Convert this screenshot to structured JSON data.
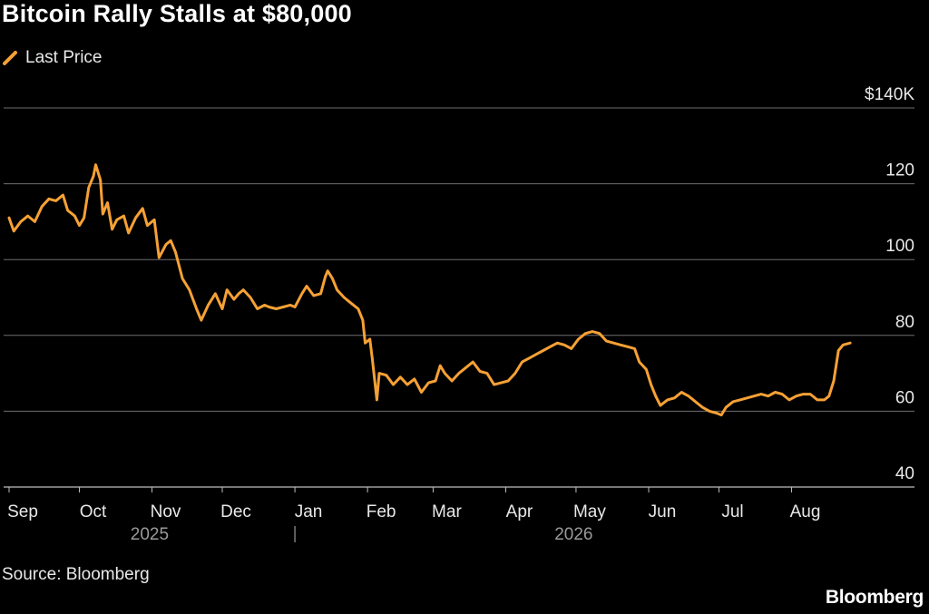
{
  "title": "Bitcoin Rally Stalls at $80,000",
  "legend": [
    {
      "label": "Last Price",
      "color": "#F6A134"
    }
  ],
  "source": "Source: Bloomberg",
  "brand": "Bloomberg",
  "chart_data": {
    "type": "line",
    "title": "Bitcoin Rally Stalls at $80,000",
    "ylim": [
      40,
      140
    ],
    "ylabel": "",
    "xlabel": "",
    "grid": true,
    "legend_position": "top-left",
    "y_ticks": [
      {
        "value": 140,
        "label": "$140K"
      },
      {
        "value": 120,
        "label": "120"
      },
      {
        "value": 100,
        "label": "100"
      },
      {
        "value": 80,
        "label": "80"
      },
      {
        "value": 60,
        "label": "60"
      },
      {
        "value": 40,
        "label": "40"
      }
    ],
    "x_ticks": [
      {
        "date": "2025-09-01",
        "label": "Sep"
      },
      {
        "date": "2025-10-01",
        "label": "Oct"
      },
      {
        "date": "2025-11-01",
        "label": "Nov"
      },
      {
        "date": "2025-12-01",
        "label": "Dec"
      },
      {
        "date": "2026-01-01",
        "label": "Jan"
      },
      {
        "date": "2026-02-01",
        "label": "Feb"
      },
      {
        "date": "2026-03-01",
        "label": "Mar"
      },
      {
        "date": "2026-04-01",
        "label": "Apr"
      },
      {
        "date": "2026-05-01",
        "label": "May"
      },
      {
        "date": "2026-06-01",
        "label": "Jun"
      },
      {
        "date": "2026-07-01",
        "label": "Jul"
      },
      {
        "date": "2026-08-01",
        "label": "Aug"
      }
    ],
    "year_labels": [
      {
        "label": "2025",
        "at": "2025-10-31"
      },
      {
        "label": "2026",
        "at": "2026-04-30"
      }
    ],
    "year_separator": "2026-01-01",
    "series": [
      {
        "name": "Last Price",
        "color": "#F6A134",
        "points": [
          [
            "2025-09-01",
            111
          ],
          [
            "2025-09-03",
            107.5
          ],
          [
            "2025-09-06",
            110
          ],
          [
            "2025-09-09",
            111.5
          ],
          [
            "2025-09-12",
            110
          ],
          [
            "2025-09-15",
            114
          ],
          [
            "2025-09-18",
            116
          ],
          [
            "2025-09-21",
            115.5
          ],
          [
            "2025-09-24",
            117
          ],
          [
            "2025-09-26",
            113
          ],
          [
            "2025-09-29",
            111.5
          ],
          [
            "2025-10-01",
            109
          ],
          [
            "2025-10-03",
            111
          ],
          [
            "2025-10-05",
            119
          ],
          [
            "2025-10-07",
            122
          ],
          [
            "2025-10-08",
            125
          ],
          [
            "2025-10-10",
            121
          ],
          [
            "2025-10-11",
            112
          ],
          [
            "2025-10-13",
            115
          ],
          [
            "2025-10-15",
            108
          ],
          [
            "2025-10-17",
            110.5
          ],
          [
            "2025-10-20",
            111.5
          ],
          [
            "2025-10-22",
            107
          ],
          [
            "2025-10-25",
            111
          ],
          [
            "2025-10-28",
            113.5
          ],
          [
            "2025-10-30",
            109
          ],
          [
            "2025-11-02",
            110.5
          ],
          [
            "2025-11-04",
            100.5
          ],
          [
            "2025-11-07",
            104
          ],
          [
            "2025-11-09",
            105
          ],
          [
            "2025-11-11",
            102
          ],
          [
            "2025-11-14",
            95
          ],
          [
            "2025-11-17",
            92
          ],
          [
            "2025-11-20",
            87
          ],
          [
            "2025-11-22",
            84
          ],
          [
            "2025-11-25",
            88
          ],
          [
            "2025-11-28",
            91
          ],
          [
            "2025-12-01",
            87
          ],
          [
            "2025-12-03",
            92
          ],
          [
            "2025-12-06",
            89.5
          ],
          [
            "2025-12-08",
            91
          ],
          [
            "2025-12-10",
            92
          ],
          [
            "2025-12-13",
            90
          ],
          [
            "2025-12-16",
            87
          ],
          [
            "2025-12-19",
            88
          ],
          [
            "2025-12-21",
            87.5
          ],
          [
            "2025-12-24",
            87
          ],
          [
            "2025-12-27",
            87.5
          ],
          [
            "2025-12-30",
            88
          ],
          [
            "2026-01-01",
            87.5
          ],
          [
            "2026-01-04",
            91
          ],
          [
            "2026-01-06",
            93
          ],
          [
            "2026-01-09",
            90.5
          ],
          [
            "2026-01-12",
            91
          ],
          [
            "2026-01-14",
            95.5
          ],
          [
            "2026-01-15",
            97
          ],
          [
            "2026-01-17",
            95
          ],
          [
            "2026-01-19",
            92
          ],
          [
            "2026-01-22",
            90
          ],
          [
            "2026-01-25",
            88.5
          ],
          [
            "2026-01-28",
            87
          ],
          [
            "2026-01-30",
            84
          ],
          [
            "2026-01-31",
            78
          ],
          [
            "2026-02-02",
            79
          ],
          [
            "2026-02-03",
            74
          ],
          [
            "2026-02-05",
            63
          ],
          [
            "2026-02-06",
            70
          ],
          [
            "2026-02-09",
            69.5
          ],
          [
            "2026-02-12",
            67
          ],
          [
            "2026-02-15",
            69
          ],
          [
            "2026-02-18",
            67
          ],
          [
            "2026-02-21",
            68.5
          ],
          [
            "2026-02-24",
            65
          ],
          [
            "2026-02-27",
            67.5
          ],
          [
            "2026-03-02",
            68
          ],
          [
            "2026-03-04",
            72
          ],
          [
            "2026-03-06",
            70
          ],
          [
            "2026-03-09",
            68
          ],
          [
            "2026-03-12",
            70
          ],
          [
            "2026-03-15",
            71.5
          ],
          [
            "2026-03-18",
            73
          ],
          [
            "2026-03-21",
            70.5
          ],
          [
            "2026-03-24",
            70
          ],
          [
            "2026-03-27",
            67
          ],
          [
            "2026-03-30",
            67.5
          ],
          [
            "2026-04-02",
            68
          ],
          [
            "2026-04-05",
            70
          ],
          [
            "2026-04-08",
            73
          ],
          [
            "2026-04-11",
            74
          ],
          [
            "2026-04-14",
            75
          ],
          [
            "2026-04-17",
            76
          ],
          [
            "2026-04-20",
            77
          ],
          [
            "2026-04-23",
            78
          ],
          [
            "2026-04-26",
            77.5
          ],
          [
            "2026-04-29",
            76.5
          ],
          [
            "2026-05-02",
            79
          ],
          [
            "2026-05-05",
            80.5
          ],
          [
            "2026-05-08",
            81
          ],
          [
            "2026-05-11",
            80.5
          ],
          [
            "2026-05-14",
            78.5
          ],
          [
            "2026-05-17",
            78
          ],
          [
            "2026-05-20",
            77.5
          ],
          [
            "2026-05-23",
            77
          ],
          [
            "2026-05-26",
            76.5
          ],
          [
            "2026-05-28",
            73
          ],
          [
            "2026-05-31",
            71
          ],
          [
            "2026-06-02",
            67
          ],
          [
            "2026-06-04",
            64
          ],
          [
            "2026-06-06",
            61.5
          ],
          [
            "2026-06-09",
            63
          ],
          [
            "2026-06-12",
            63.5
          ],
          [
            "2026-06-15",
            65
          ],
          [
            "2026-06-18",
            64
          ],
          [
            "2026-06-21",
            62.5
          ],
          [
            "2026-06-24",
            61
          ],
          [
            "2026-06-27",
            60
          ],
          [
            "2026-06-30",
            59.5
          ],
          [
            "2026-07-02",
            59
          ],
          [
            "2026-07-04",
            61
          ],
          [
            "2026-07-07",
            62.5
          ],
          [
            "2026-07-10",
            63
          ],
          [
            "2026-07-13",
            63.5
          ],
          [
            "2026-07-16",
            64
          ],
          [
            "2026-07-19",
            64.5
          ],
          [
            "2026-07-22",
            64
          ],
          [
            "2026-07-25",
            65
          ],
          [
            "2026-07-28",
            64.5
          ],
          [
            "2026-07-31",
            63
          ],
          [
            "2026-08-03",
            64
          ],
          [
            "2026-08-06",
            64.5
          ],
          [
            "2026-08-09",
            64.5
          ],
          [
            "2026-08-12",
            63
          ],
          [
            "2026-08-15",
            63
          ],
          [
            "2026-08-17",
            64
          ],
          [
            "2026-08-19",
            68
          ],
          [
            "2026-08-21",
            76
          ],
          [
            "2026-08-23",
            77.5
          ],
          [
            "2026-08-26",
            78
          ]
        ]
      }
    ]
  }
}
